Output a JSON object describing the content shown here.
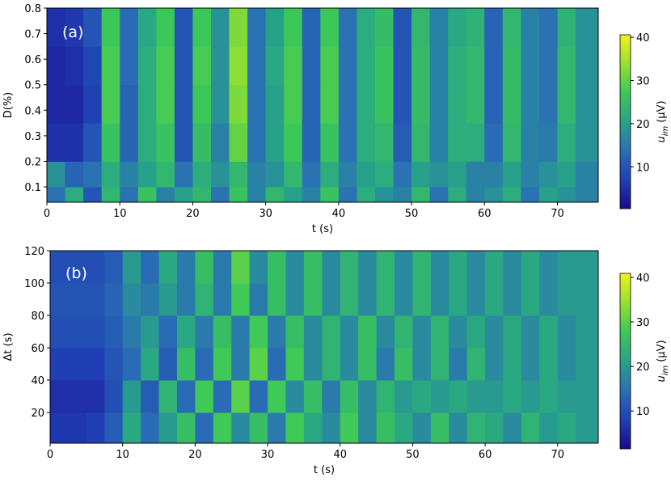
{
  "chart_data": [
    {
      "type": "heatmap",
      "annotation": "(a)",
      "xlabel": "t (s)",
      "ylabel": "D(%)",
      "xlim": [
        0,
        75.6
      ],
      "xticks": [
        0,
        10,
        20,
        30,
        40,
        50,
        60,
        70
      ],
      "ylim": [
        0.04,
        0.8
      ],
      "yticks": [
        0.1,
        0.2,
        0.3,
        0.4,
        0.5,
        0.6,
        0.7,
        0.8
      ],
      "x_edges": [
        0,
        2.5,
        5,
        7.5,
        10,
        12.5,
        15,
        17.5,
        20,
        22.5,
        25,
        27.5,
        30,
        32.5,
        35,
        37.5,
        40,
        42.5,
        45,
        47.5,
        50,
        52.5,
        55,
        57.5,
        60,
        62.5,
        65,
        67.5,
        70,
        72.5,
        75.6
      ],
      "y_edges": [
        0.04,
        0.1,
        0.2,
        0.35,
        0.5,
        0.65,
        0.8
      ],
      "z": [
        [
          14,
          22,
          10,
          24,
          14,
          26,
          16,
          20,
          24,
          14,
          26,
          16,
          24,
          20,
          16,
          26,
          14,
          22,
          18,
          16,
          24,
          14,
          22,
          16,
          18,
          22,
          14,
          20,
          18,
          16
        ],
        [
          18,
          12,
          14,
          22,
          16,
          20,
          24,
          14,
          22,
          18,
          24,
          16,
          18,
          24,
          14,
          22,
          16,
          20,
          22,
          14,
          20,
          18,
          20,
          16,
          16,
          20,
          16,
          18,
          20,
          16
        ],
        [
          5,
          5,
          10,
          26,
          12,
          22,
          26,
          10,
          25,
          16,
          30,
          14,
          20,
          27,
          12,
          26,
          14,
          22,
          24,
          11,
          24,
          16,
          22,
          22,
          13,
          24,
          16,
          15,
          22,
          18
        ],
        [
          4,
          4,
          7,
          28,
          12,
          22,
          28,
          10,
          27,
          18,
          32,
          14,
          20,
          28,
          12,
          28,
          14,
          22,
          26,
          10,
          25,
          16,
          22,
          24,
          12,
          25,
          16,
          14,
          24,
          18
        ],
        [
          4,
          5,
          8,
          28,
          13,
          22,
          28,
          10,
          28,
          18,
          33,
          14,
          21,
          28,
          12,
          28,
          14,
          22,
          26,
          10,
          25,
          16,
          22,
          24,
          12,
          25,
          16,
          14,
          24,
          18
        ],
        [
          5,
          6,
          10,
          27,
          13,
          21,
          27,
          10,
          27,
          18,
          32,
          14,
          20,
          27,
          12,
          27,
          14,
          22,
          25,
          10,
          24,
          16,
          21,
          23,
          12,
          24,
          16,
          14,
          23,
          18
        ]
      ],
      "clim": [
        0.3,
        40.6
      ],
      "cticks": [
        10,
        20,
        30,
        40
      ],
      "colormap": [
        "#1b0a8e",
        "#2040b4",
        "#2a70b4",
        "#28a488",
        "#3cc858",
        "#98e030",
        "#f2f21c"
      ],
      "colorbar_label": {
        "symbol": "u",
        "subscript": "im",
        "unit": "(μV)"
      }
    },
    {
      "type": "heatmap",
      "annotation": "(b)",
      "xlabel": "t (s)",
      "ylabel": "Δt (s)",
      "xlim": [
        0,
        75.6
      ],
      "xticks": [
        0,
        10,
        20,
        30,
        40,
        50,
        60,
        70
      ],
      "ylim": [
        1,
        120
      ],
      "yticks": [
        20,
        40,
        60,
        80,
        100,
        120
      ],
      "x_edges": [
        0,
        2.5,
        5,
        7.5,
        10,
        12.5,
        15,
        17.5,
        20,
        22.5,
        25,
        27.5,
        30,
        32.5,
        35,
        37.5,
        40,
        42.5,
        45,
        47.5,
        50,
        52.5,
        55,
        57.5,
        60,
        62.5,
        65,
        67.5,
        70,
        72.5,
        75.6
      ],
      "y_edges": [
        1,
        20,
        40,
        60,
        80,
        100,
        120
      ],
      "z": [
        [
          7,
          7,
          8,
          12,
          22,
          14,
          20,
          26,
          14,
          28,
          18,
          26,
          16,
          28,
          22,
          18,
          28,
          18,
          26,
          22,
          18,
          26,
          18,
          24,
          22,
          18,
          24,
          20,
          22,
          20
        ],
        [
          6,
          6,
          6,
          10,
          20,
          12,
          24,
          14,
          28,
          14,
          30,
          14,
          28,
          18,
          26,
          16,
          26,
          18,
          24,
          20,
          22,
          20,
          22,
          20,
          20,
          22,
          20,
          22,
          20,
          20
        ],
        [
          8,
          8,
          8,
          11,
          14,
          22,
          12,
          26,
          14,
          28,
          16,
          30,
          14,
          28,
          18,
          24,
          18,
          26,
          16,
          26,
          18,
          24,
          16,
          24,
          18,
          22,
          18,
          22,
          18,
          20
        ],
        [
          10,
          10,
          10,
          12,
          16,
          20,
          14,
          22,
          16,
          26,
          16,
          28,
          16,
          26,
          18,
          24,
          18,
          26,
          18,
          24,
          18,
          24,
          18,
          22,
          18,
          22,
          18,
          22,
          18,
          20
        ],
        [
          11,
          11,
          11,
          13,
          18,
          16,
          20,
          16,
          24,
          16,
          28,
          16,
          26,
          18,
          26,
          18,
          24,
          18,
          24,
          18,
          24,
          18,
          22,
          18,
          22,
          18,
          22,
          18,
          20,
          20
        ],
        [
          10,
          10,
          10,
          12,
          20,
          14,
          22,
          16,
          26,
          16,
          30,
          18,
          26,
          18,
          26,
          18,
          24,
          18,
          24,
          18,
          24,
          18,
          22,
          18,
          22,
          18,
          22,
          18,
          20,
          20
        ]
      ],
      "clim": [
        1.5,
        40.9
      ],
      "cticks": [
        10,
        20,
        30,
        40
      ],
      "colormap": [
        "#1b0a8e",
        "#2040b4",
        "#2a70b4",
        "#28a488",
        "#3cc858",
        "#98e030",
        "#f2f21c"
      ],
      "colorbar_label": {
        "symbol": "u",
        "subscript": "im",
        "unit": "(μV)"
      }
    }
  ]
}
